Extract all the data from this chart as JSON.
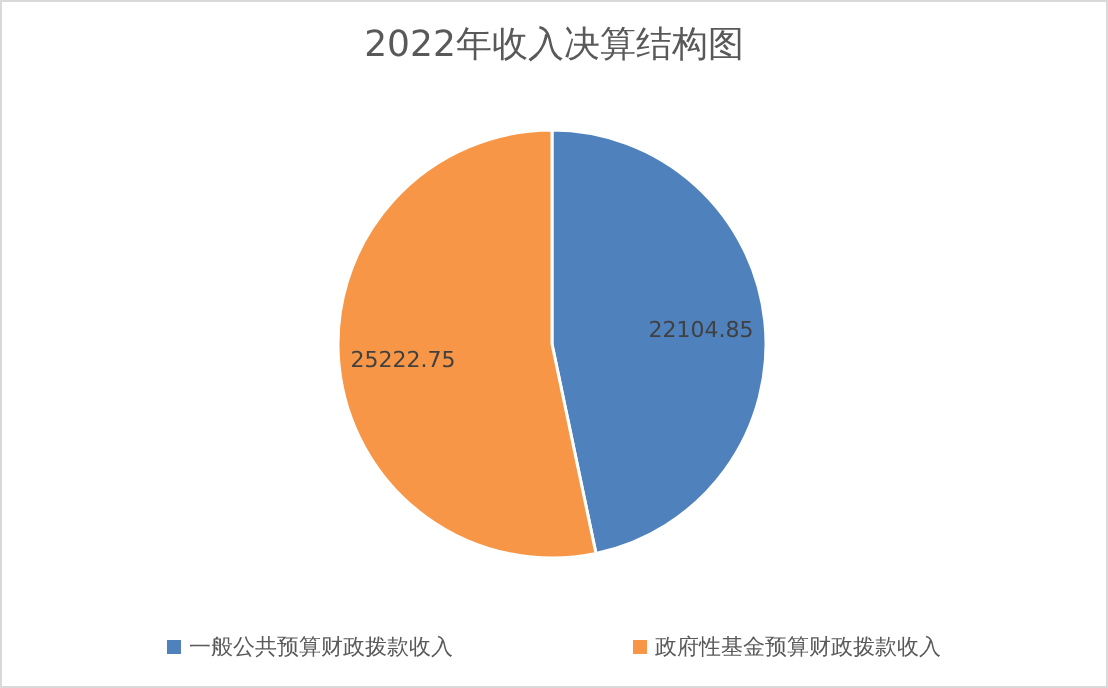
{
  "chart_data": {
    "type": "pie",
    "title": "2022年收入决算结构图",
    "categories": [
      "一般公共预算财政拨款收入",
      "政府性基金预算财政拨款收入"
    ],
    "values": [
      22104.85,
      25222.75
    ],
    "colors": [
      "#4f81bd",
      "#f79646"
    ],
    "data_labels": true,
    "legend": "bottom"
  }
}
